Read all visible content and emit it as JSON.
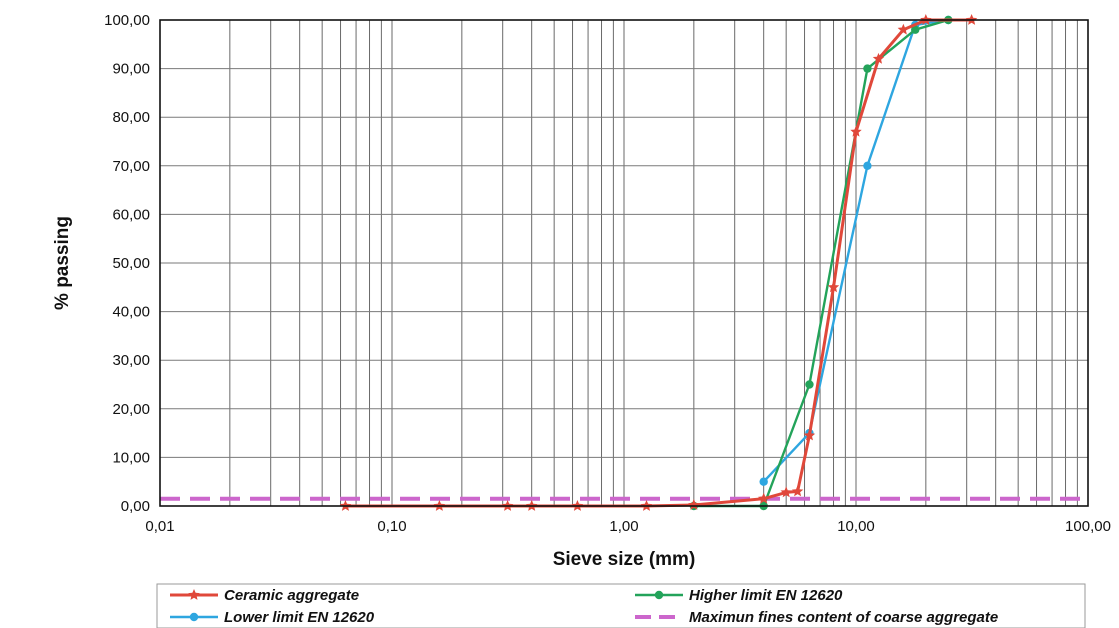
{
  "chart_data": {
    "type": "line",
    "title": "",
    "xlabel": "Sieve size (mm)",
    "ylabel": "% passing",
    "x_scale": "log",
    "xlim": [
      0.01,
      100
    ],
    "ylim": [
      0,
      100
    ],
    "x_ticks": [
      0.01,
      0.1,
      1,
      10,
      100
    ],
    "x_tick_labels": [
      "0,01",
      "0,10",
      "1,00",
      "10,00",
      "100,00"
    ],
    "y_ticks": [
      0,
      10,
      20,
      30,
      40,
      50,
      60,
      70,
      80,
      90,
      100
    ],
    "y_tick_labels": [
      "0,00",
      "10,00",
      "20,00",
      "30,00",
      "40,00",
      "50,00",
      "60,00",
      "70,00",
      "80,00",
      "90,00",
      "100,00"
    ],
    "grid": true,
    "legend_position": "bottom",
    "series": [
      {
        "name": "Ceramic aggregate",
        "color": "#e0483a",
        "marker": "star",
        "x": [
          0.063,
          0.16,
          0.315,
          0.4,
          0.63,
          1.25,
          2,
          4,
          5,
          5.6,
          6.3,
          8,
          10,
          12.5,
          16,
          20,
          31.5
        ],
        "y": [
          0,
          0,
          0,
          0,
          0,
          0,
          0.2,
          1.5,
          2.8,
          3,
          14.5,
          45,
          77,
          92,
          98,
          100,
          100
        ]
      },
      {
        "name": "Lower limit EN 12620",
        "color": "#2ea6e0",
        "marker": "circle",
        "x": [
          4,
          6.3,
          11.2,
          18,
          25
        ],
        "y": [
          5,
          15,
          70,
          99,
          100
        ]
      },
      {
        "name": "Higher limit EN 12620",
        "color": "#23a35a",
        "marker": "circle",
        "x": [
          2,
          4,
          6.3,
          11.2,
          18,
          25
        ],
        "y": [
          0,
          0,
          25,
          90,
          98,
          100
        ]
      },
      {
        "name": "Maximun fines content of coarse aggregate",
        "color": "#cc66cc",
        "marker": "dash",
        "x": [
          0.01,
          100
        ],
        "y": [
          1.5,
          1.5
        ]
      }
    ]
  }
}
